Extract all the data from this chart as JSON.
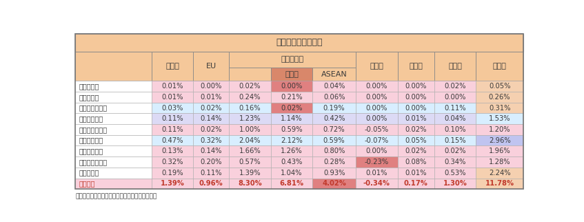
{
  "title": "寄　与　度（輸出）",
  "footnote": "資料：財務省「貿易統計」から経済産業省作成。",
  "row_labels": [
    "１．食料品",
    "２．原料品",
    "３．鉱物性燃料",
    "４．化学製品",
    "５．原料別製品",
    "６．一般機械",
    "７．電気機器",
    "８．輸送用機器",
    "９．その他",
    "　総　額"
  ],
  "data": [
    [
      "0.01%",
      "0.00%",
      "0.02%",
      "0.00%",
      "0.04%",
      "0.00%",
      "0.00%",
      "0.02%",
      "0.05%"
    ],
    [
      "0.01%",
      "0.01%",
      "0.24%",
      "0.21%",
      "0.06%",
      "0.00%",
      "0.00%",
      "0.00%",
      "0.26%"
    ],
    [
      "0.03%",
      "0.02%",
      "0.16%",
      "0.02%",
      "0.19%",
      "0.00%",
      "0.00%",
      "0.11%",
      "0.31%"
    ],
    [
      "0.11%",
      "0.14%",
      "1.23%",
      "1.14%",
      "0.42%",
      "0.00%",
      "0.01%",
      "0.04%",
      "1.53%"
    ],
    [
      "0.11%",
      "0.02%",
      "1.00%",
      "0.59%",
      "0.72%",
      "-0.05%",
      "0.02%",
      "0.10%",
      "1.20%"
    ],
    [
      "0.47%",
      "0.32%",
      "2.04%",
      "2.12%",
      "0.59%",
      "-0.07%",
      "0.05%",
      "0.15%",
      "2.96%"
    ],
    [
      "0.13%",
      "0.14%",
      "1.66%",
      "1.26%",
      "0.80%",
      "0.00%",
      "0.02%",
      "0.02%",
      "1.96%"
    ],
    [
      "0.32%",
      "0.20%",
      "0.57%",
      "0.43%",
      "0.28%",
      "-0.23%",
      "0.08%",
      "0.34%",
      "1.28%"
    ],
    [
      "0.19%",
      "0.11%",
      "1.39%",
      "1.04%",
      "0.93%",
      "0.01%",
      "0.01%",
      "0.53%",
      "2.24%"
    ],
    [
      "1.39%",
      "0.96%",
      "8.30%",
      "6.81%",
      "4.02%",
      "-0.34%",
      "0.17%",
      "1.30%",
      "11.78%"
    ]
  ],
  "header_bg": "#F5C89A",
  "china_header_bg": "#D9876A",
  "cell_colors": [
    [
      "#FFFFFF",
      "#F9D0DC",
      "#F9D0DC",
      "#F9D0DC",
      "#E08080",
      "#F9D0DC",
      "#F9D0DC",
      "#F9D0DC",
      "#F9D0DC",
      "#F5D0B0"
    ],
    [
      "#FFFFFF",
      "#F9D0DC",
      "#F9D0DC",
      "#F9D0DC",
      "#F9D0DC",
      "#F9D0DC",
      "#F9D0DC",
      "#F9D0DC",
      "#F9D0DC",
      "#F5D0B0"
    ],
    [
      "#FFFFFF",
      "#D8EEFF",
      "#D8EEFF",
      "#D8EEFF",
      "#E08080",
      "#D8EEFF",
      "#D8EEFF",
      "#D8EEFF",
      "#D8EEFF",
      "#F5D0B0"
    ],
    [
      "#FFFFFF",
      "#DCDAF5",
      "#DCDAF5",
      "#DCDAF5",
      "#DCDAF5",
      "#DCDAF5",
      "#DCDAF5",
      "#DCDAF5",
      "#DCDAF5",
      "#D8EEFF"
    ],
    [
      "#FFFFFF",
      "#F9D0DC",
      "#F9D0DC",
      "#F9D0DC",
      "#F9D0DC",
      "#F9D0DC",
      "#F9D0DC",
      "#F9D0DC",
      "#F9D0DC",
      "#F9D0DC"
    ],
    [
      "#FFFFFF",
      "#D8EEFF",
      "#D8EEFF",
      "#D8EEFF",
      "#D8EEFF",
      "#D8EEFF",
      "#D8EEFF",
      "#D8EEFF",
      "#D8EEFF",
      "#C0C4F0"
    ],
    [
      "#FFFFFF",
      "#F9D0DC",
      "#F9D0DC",
      "#F9D0DC",
      "#F9D0DC",
      "#F9D0DC",
      "#F9D0DC",
      "#F9D0DC",
      "#F9D0DC",
      "#F9D0DC"
    ],
    [
      "#FFFFFF",
      "#F9D0DC",
      "#F9D0DC",
      "#F9D0DC",
      "#F9D0DC",
      "#F9D0DC",
      "#E08080",
      "#F9D0DC",
      "#F9D0DC",
      "#F9D0DC"
    ],
    [
      "#FFFFFF",
      "#F9D0DC",
      "#F9D0DC",
      "#F9D0DC",
      "#F9D0DC",
      "#F9D0DC",
      "#F9D0DC",
      "#F9D0DC",
      "#F9D0DC",
      "#F5D0B0"
    ],
    [
      "#F9D0DC",
      "#F9D0DC",
      "#F9D0DC",
      "#F9D0DC",
      "#F9D0DC",
      "#E08080",
      "#F9D0DC",
      "#F9D0DC",
      "#F9D0DC",
      "#F5D0B0"
    ]
  ],
  "total_text_color": "#C0392B",
  "normal_text_color": "#3A3A3A",
  "header_text_color": "#3A3A3A"
}
